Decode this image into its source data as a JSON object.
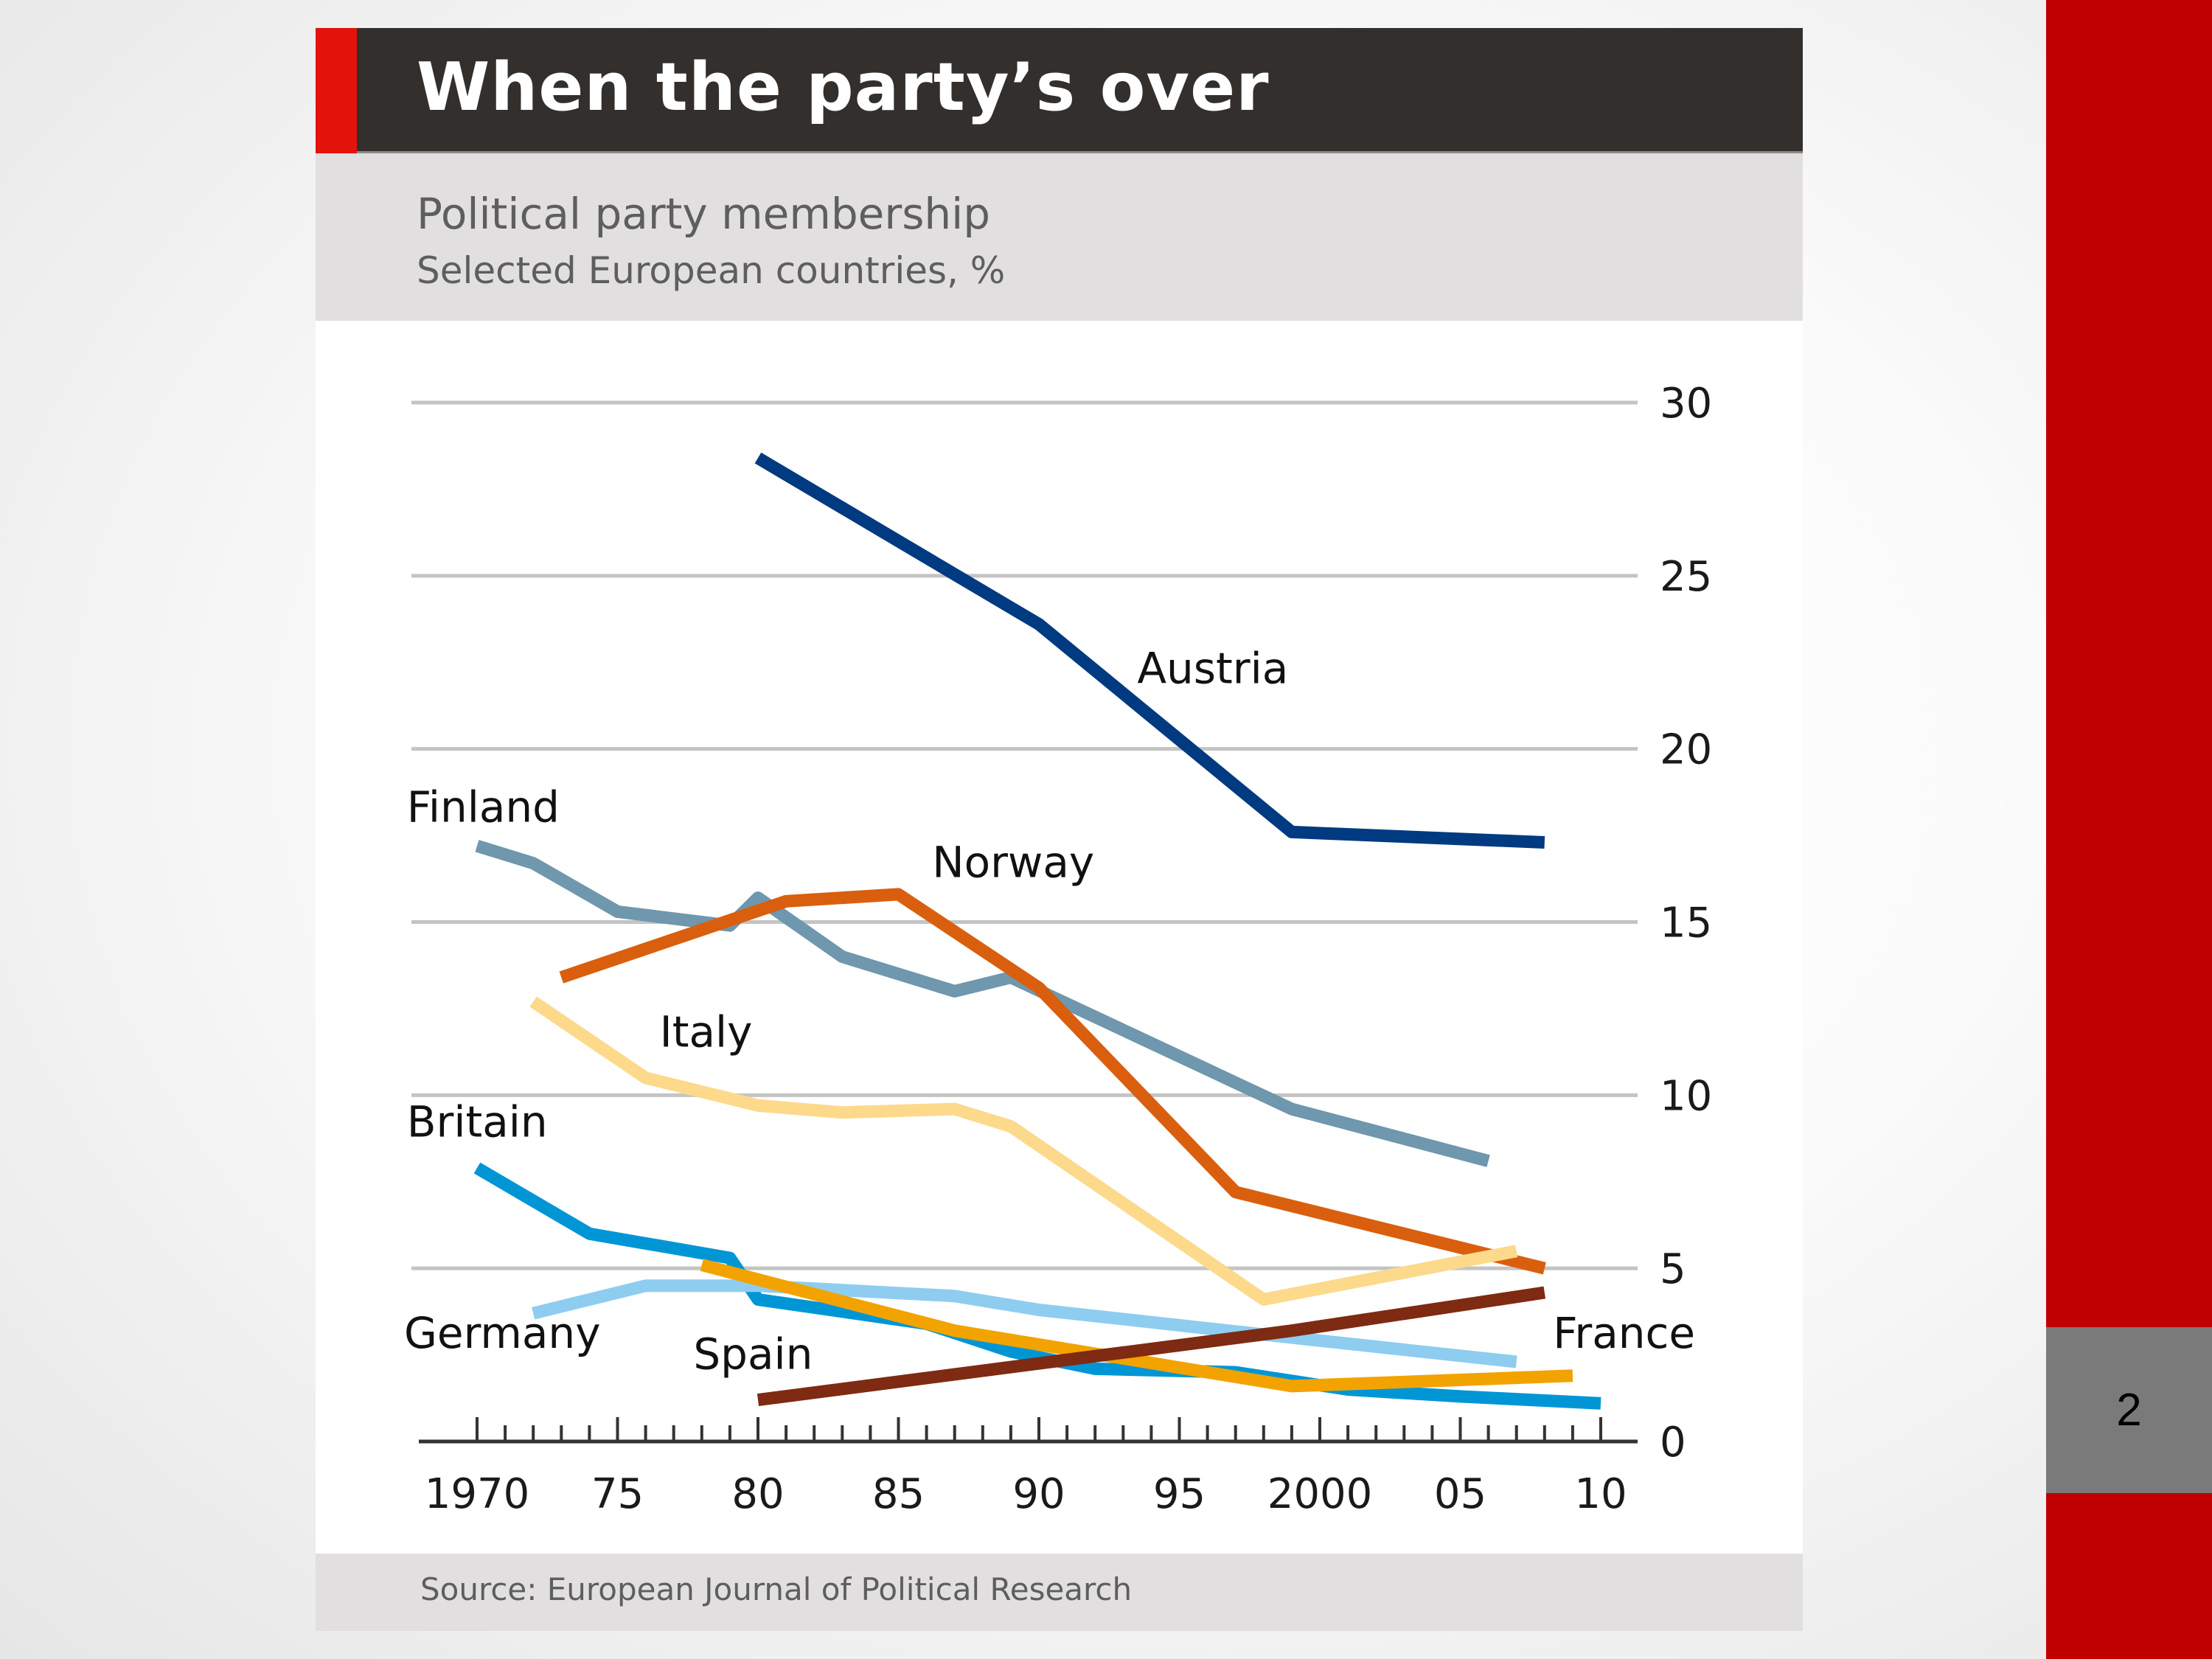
{
  "slide": {
    "page_number": "2",
    "accent_color": "#c00000",
    "page_box_color": "#7a7a7a"
  },
  "chart_data": {
    "type": "line",
    "title": "When the party’s over",
    "subtitle": "Political party membership",
    "subtitle2": "Selected European countries, %",
    "source": "Source: European Journal of Political Research",
    "xlabel": "",
    "ylabel": "%",
    "xlim": [
      1970,
      2010
    ],
    "ylim": [
      0,
      30
    ],
    "grid": true,
    "y_axis_side": "right",
    "x_ticks": [
      {
        "value": 1970,
        "label": "1970"
      },
      {
        "value": 1975,
        "label": "75"
      },
      {
        "value": 1980,
        "label": "80"
      },
      {
        "value": 1985,
        "label": "85"
      },
      {
        "value": 1990,
        "label": "90"
      },
      {
        "value": 1995,
        "label": "95"
      },
      {
        "value": 2000,
        "label": "2000"
      },
      {
        "value": 2005,
        "label": "05"
      },
      {
        "value": 2010,
        "label": "10"
      }
    ],
    "y_ticks": [
      {
        "value": 0,
        "label": "0"
      },
      {
        "value": 5,
        "label": "5"
      },
      {
        "value": 10,
        "label": "10"
      },
      {
        "value": 15,
        "label": "15"
      },
      {
        "value": 20,
        "label": "20"
      },
      {
        "value": 25,
        "label": "25"
      },
      {
        "value": 30,
        "label": "30"
      }
    ],
    "legend": "inline-labels",
    "series": [
      {
        "name": "Austria",
        "color": "#003a80",
        "label_at": [
          1993.5,
          21.9
        ],
        "x": [
          1980,
          1990,
          1999,
          2008
        ],
        "y": [
          28.4,
          23.6,
          17.6,
          17.3
        ]
      },
      {
        "name": "Finland",
        "color": "#6f97ad",
        "label_at": [
          1967.5,
          17.9
        ],
        "x": [
          1970,
          1972,
          1975,
          1979,
          1980,
          1983,
          1987,
          1989,
          1999,
          2006
        ],
        "y": [
          17.2,
          16.7,
          15.3,
          14.9,
          15.7,
          14.0,
          13.0,
          13.4,
          9.6,
          8.1
        ]
      },
      {
        "name": "Norway",
        "color": "#d95f0e",
        "label_at": [
          1986.2,
          16.3
        ],
        "x": [
          1973,
          1981,
          1985,
          1990,
          1997,
          2008
        ],
        "y": [
          13.4,
          15.6,
          15.8,
          13.1,
          7.2,
          5.0
        ]
      },
      {
        "name": "Italy",
        "color": "#fdd98c",
        "label_at": [
          1976.5,
          11.4
        ],
        "x": [
          1972,
          1976,
          1980,
          1983,
          1987,
          1989,
          1998,
          2007
        ],
        "y": [
          12.7,
          10.5,
          9.7,
          9.5,
          9.6,
          9.1,
          4.1,
          5.5
        ]
      },
      {
        "name": "Britain",
        "color": "#0096d6",
        "label_at": [
          1967.5,
          8.8
        ],
        "x": [
          1970,
          1974,
          1979,
          1980,
          1986,
          1989,
          1992,
          1997,
          2001,
          2005,
          2010
        ],
        "y": [
          7.9,
          6.0,
          5.3,
          4.1,
          3.4,
          2.6,
          2.1,
          2.0,
          1.5,
          1.3,
          1.1
        ]
      },
      {
        "name": "Germany",
        "color": "#8ecdf0",
        "label_at": [
          1967.4,
          2.7
        ],
        "x": [
          1972,
          1976,
          1980,
          1987,
          1990,
          1999,
          2007
        ],
        "y": [
          3.7,
          4.5,
          4.5,
          4.2,
          3.8,
          3.0,
          2.3
        ]
      },
      {
        "name": "France",
        "color": "#f2a300",
        "label_at": [
          2008.3,
          2.7
        ],
        "x": [
          1978,
          1987,
          1999,
          2009
        ],
        "y": [
          5.1,
          3.2,
          1.6,
          1.9
        ]
      },
      {
        "name": "Spain",
        "color": "#7f2a12",
        "label_at": [
          1977.7,
          2.1
        ],
        "x": [
          1980,
          1999,
          2008
        ],
        "y": [
          1.2,
          3.2,
          4.3
        ]
      }
    ]
  }
}
